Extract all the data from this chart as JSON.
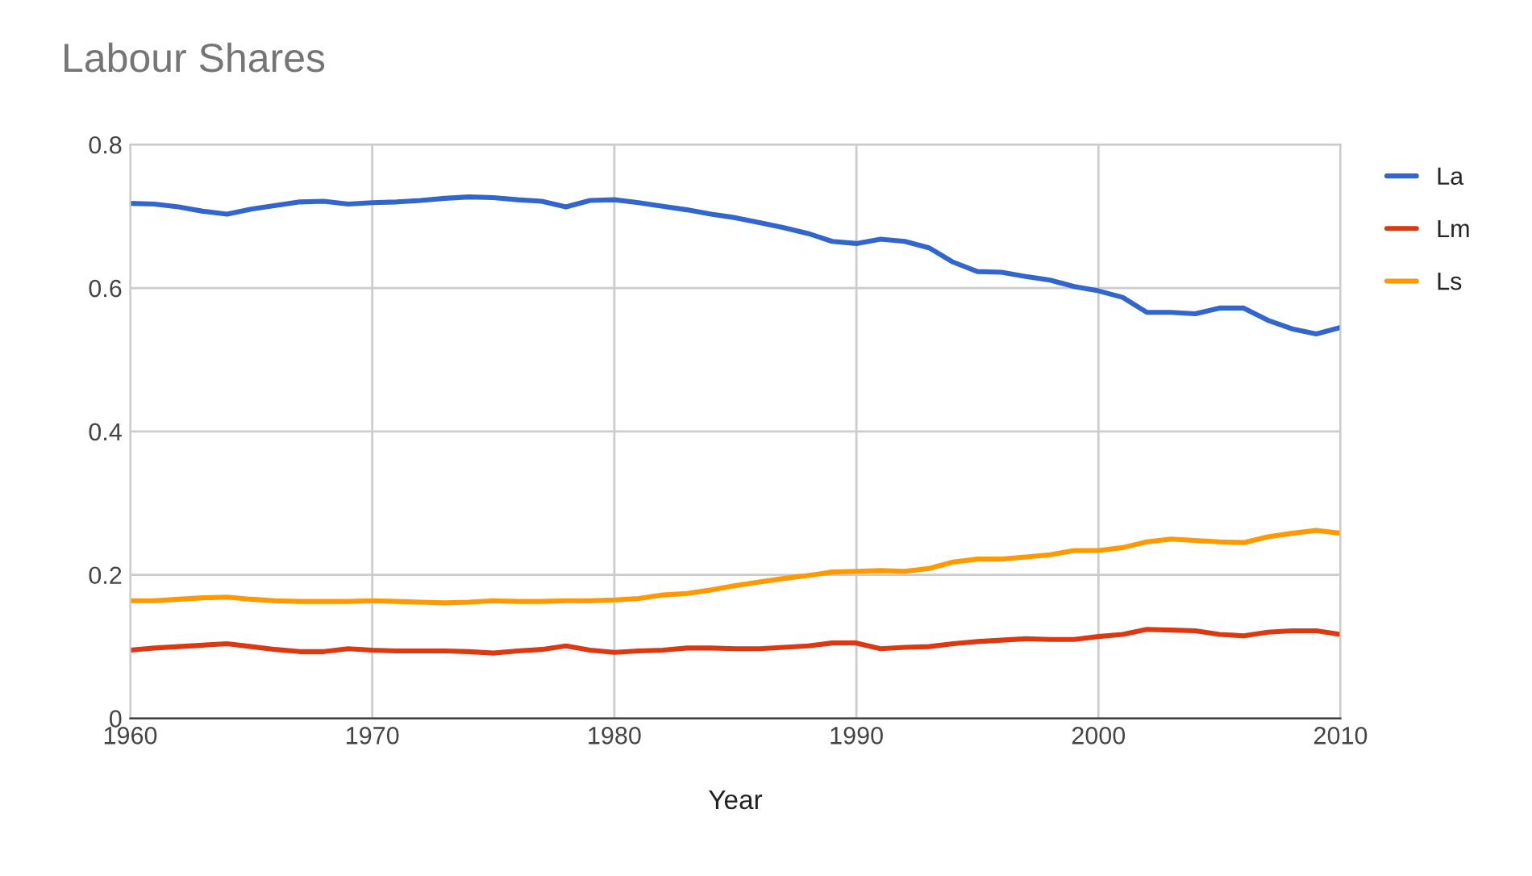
{
  "chart_data": {
    "type": "line",
    "title": "Labour Shares",
    "xlabel": "Year",
    "x": [
      1960,
      1961,
      1962,
      1963,
      1964,
      1965,
      1966,
      1967,
      1968,
      1969,
      1970,
      1971,
      1972,
      1973,
      1974,
      1975,
      1976,
      1977,
      1978,
      1979,
      1980,
      1981,
      1982,
      1983,
      1984,
      1985,
      1986,
      1987,
      1988,
      1989,
      1990,
      1991,
      1992,
      1993,
      1994,
      1995,
      1996,
      1997,
      1998,
      1999,
      2000,
      2001,
      2002,
      2003,
      2004,
      2005,
      2006,
      2007,
      2008,
      2009,
      2010
    ],
    "series": [
      {
        "name": "La",
        "color": "#3366cc",
        "values": [
          0.718,
          0.717,
          0.713,
          0.707,
          0.703,
          0.71,
          0.715,
          0.72,
          0.721,
          0.717,
          0.719,
          0.72,
          0.722,
          0.725,
          0.727,
          0.726,
          0.723,
          0.721,
          0.713,
          0.722,
          0.723,
          0.719,
          0.714,
          0.709,
          0.703,
          0.698,
          0.691,
          0.684,
          0.676,
          0.665,
          0.662,
          0.668,
          0.665,
          0.656,
          0.636,
          0.623,
          0.622,
          0.616,
          0.611,
          0.602,
          0.596,
          0.587,
          0.566,
          0.566,
          0.564,
          0.572,
          0.572,
          0.555,
          0.543,
          0.536,
          0.545
        ]
      },
      {
        "name": "Lm",
        "color": "#dc3912",
        "values": [
          0.095,
          0.098,
          0.1,
          0.102,
          0.104,
          0.1,
          0.096,
          0.093,
          0.093,
          0.097,
          0.095,
          0.094,
          0.094,
          0.094,
          0.093,
          0.091,
          0.094,
          0.096,
          0.101,
          0.095,
          0.092,
          0.094,
          0.095,
          0.098,
          0.098,
          0.097,
          0.097,
          0.099,
          0.101,
          0.105,
          0.105,
          0.097,
          0.099,
          0.1,
          0.104,
          0.107,
          0.109,
          0.111,
          0.11,
          0.11,
          0.114,
          0.117,
          0.124,
          0.123,
          0.122,
          0.117,
          0.115,
          0.12,
          0.122,
          0.122,
          0.117
        ]
      },
      {
        "name": "Ls",
        "color": "#ff9900",
        "values": [
          0.164,
          0.164,
          0.166,
          0.168,
          0.169,
          0.166,
          0.164,
          0.163,
          0.163,
          0.163,
          0.164,
          0.163,
          0.162,
          0.161,
          0.162,
          0.164,
          0.163,
          0.163,
          0.164,
          0.164,
          0.165,
          0.167,
          0.172,
          0.174,
          0.179,
          0.185,
          0.19,
          0.195,
          0.199,
          0.204,
          0.205,
          0.206,
          0.205,
          0.209,
          0.218,
          0.222,
          0.222,
          0.225,
          0.228,
          0.234,
          0.234,
          0.238,
          0.246,
          0.25,
          0.248,
          0.246,
          0.245,
          0.253,
          0.258,
          0.262,
          0.258
        ]
      }
    ],
    "xlim": [
      1960,
      2010
    ],
    "xticks": [
      1960,
      1970,
      1980,
      1990,
      2000,
      2010
    ],
    "ylim": [
      0,
      0.8
    ],
    "yticks": [
      {
        "value": 0,
        "label": "0"
      },
      0.2,
      0.4,
      0.6,
      0.8
    ],
    "grid": true,
    "legend": "top right"
  }
}
